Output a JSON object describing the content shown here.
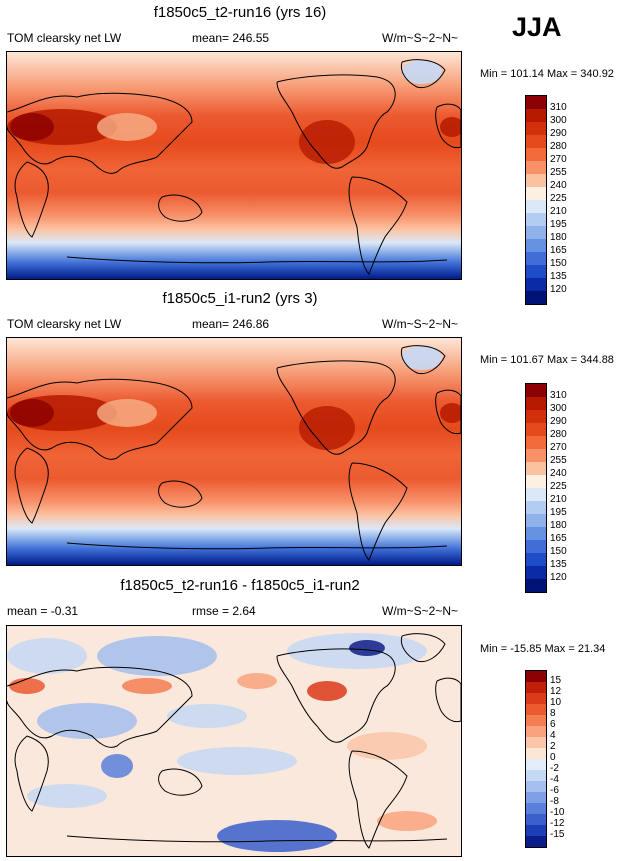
{
  "season": "JJA",
  "panels": [
    {
      "title": "f1850c5_t2-run16 (yrs 16)",
      "left_text": "TOM clearsky net LW",
      "center_text": "mean= 246.55",
      "units": "W/m~S~2~N~",
      "minmax": "Min = 101.14 Max = 340.92",
      "colorbar": {
        "labels": [
          "310",
          "300",
          "290",
          "280",
          "270",
          "255",
          "240",
          "225",
          "210",
          "195",
          "180",
          "165",
          "150",
          "135",
          "120"
        ],
        "colors": [
          "#8b0000",
          "#b51a00",
          "#d2300b",
          "#e54a1c",
          "#f26a3a",
          "#f8916a",
          "#fcc2a0",
          "#fdf0e0",
          "#dbe8f8",
          "#b3cdf2",
          "#8fb2ea",
          "#6690e0",
          "#3e6ed6",
          "#1f4cc8",
          "#0a2aa6",
          "#001273"
        ]
      }
    },
    {
      "title": "f1850c5_i1-run2 (yrs 3)",
      "left_text": "TOM clearsky net LW",
      "center_text": "mean= 246.86",
      "units": "W/m~S~2~N~",
      "minmax": "Min = 101.67 Max = 344.88",
      "colorbar": {
        "labels": [
          "310",
          "300",
          "290",
          "280",
          "270",
          "255",
          "240",
          "225",
          "210",
          "195",
          "180",
          "165",
          "150",
          "135",
          "120"
        ],
        "colors": [
          "#8b0000",
          "#b51a00",
          "#d2300b",
          "#e54a1c",
          "#f26a3a",
          "#f8916a",
          "#fcc2a0",
          "#fdf0e0",
          "#dbe8f8",
          "#b3cdf2",
          "#8fb2ea",
          "#6690e0",
          "#3e6ed6",
          "#1f4cc8",
          "#0a2aa6",
          "#001273"
        ]
      }
    },
    {
      "title": "f1850c5_t2-run16 - f1850c5_i1-run2",
      "left_text": "mean =  -0.31",
      "center_text": "rmse =   2.64",
      "units": "W/m~S~2~N~",
      "minmax": "Min = -15.85 Max =  21.34",
      "colorbar": {
        "labels": [
          "15",
          "12",
          "10",
          "8",
          "6",
          "4",
          "2",
          "0",
          "-2",
          "-4",
          "-6",
          "-8",
          "-10",
          "-12",
          "-15"
        ],
        "colors": [
          "#8b0000",
          "#c0200a",
          "#dc3a1a",
          "#ec5a30",
          "#f47e52",
          "#f8a37e",
          "#fbc6aa",
          "#fde6d6",
          "#e4eefa",
          "#c6d8f4",
          "#a5bfee",
          "#7fa0e4",
          "#5a80da",
          "#3a60cc",
          "#1c3eb6",
          "#0a1e8a"
        ]
      }
    }
  ]
}
